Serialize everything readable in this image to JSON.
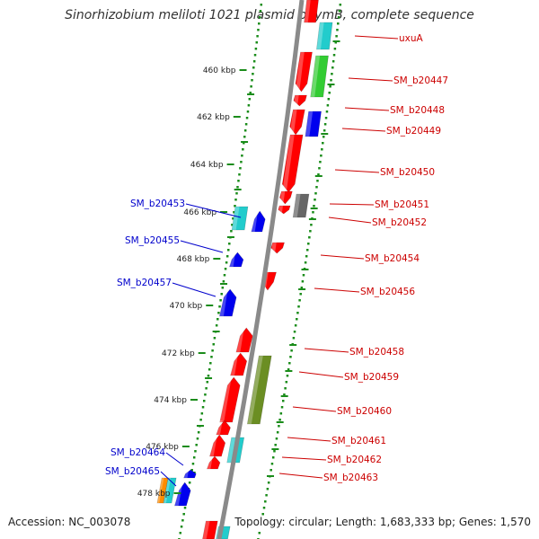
{
  "title": "Sinorhizobium meliloti 1021 plasmid pSymB, complete sequence",
  "accession": "Accession: NC_003078",
  "summary": "Topology: circular; Length: 1,683,333 bp; Genes: 1,570",
  "colors": {
    "backbone": "#888888",
    "red": "#ff0000",
    "blue": "#0000ee",
    "cyan": "#22cccc",
    "green": "#33cc33",
    "olive": "#6b8e23",
    "gray": "#666666",
    "orange": "#ff8c00",
    "tick_green": "#1a8c1a",
    "label_red": "#cc0000",
    "label_blue": "#0000cc"
  },
  "kbp_ticks": [
    "460 kbp",
    "462 kbp",
    "464 kbp",
    "466 kbp",
    "468 kbp",
    "470 kbp",
    "472 kbp",
    "474 kbp",
    "476 kbp",
    "478 kbp"
  ],
  "right_labels": [
    "uxuA",
    "SM_b20447",
    "SM_b20448",
    "SM_b20449",
    "SM_b20450",
    "SM_b20451",
    "SM_b20452",
    "SM_b20454",
    "SM_b20456",
    "SM_b20458",
    "SM_b20459",
    "SM_b20460",
    "SM_b20461",
    "SM_b20462",
    "SM_b20463"
  ],
  "left_labels": [
    "SM_b20453",
    "SM_b20455",
    "SM_b20457",
    "SM_b20464",
    "SM_b20465"
  ]
}
